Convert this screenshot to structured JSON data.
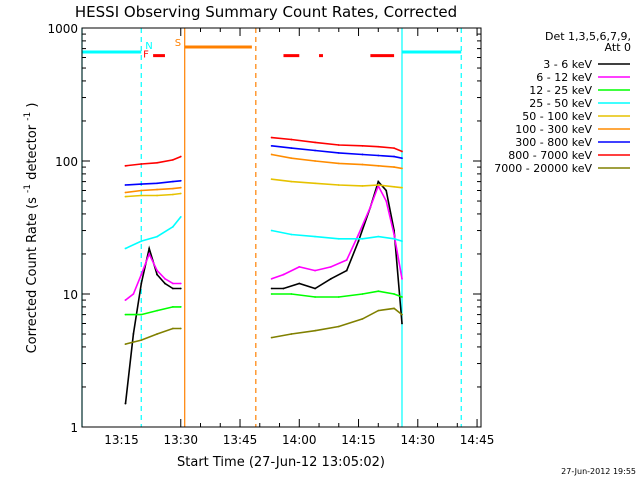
{
  "title": "HESSI Observing Summary Count Rates, Corrected",
  "footer_date": "27-Jun-2012 19:55",
  "chart_data": {
    "type": "line",
    "title": "HESSI Observing Summary Count Rates, Corrected",
    "xlabel": "Start Time (27-Jun-12 13:05:02)",
    "ylabel": "Corrected Count Rate (s⁻¹ detector⁻¹)",
    "ylabel_main": "Corrected Count Rate (s",
    "ylabel_mid": " detector",
    "ylabel_end": ")",
    "ylabel_sup": "-1",
    "yscale": "log",
    "ylim": [
      1,
      1000
    ],
    "xlim": [
      "13:05",
      "14:46"
    ],
    "x_tick_labels": [
      "13:15",
      "13:30",
      "13:45",
      "14:00",
      "14:15",
      "14:30",
      "14:45"
    ],
    "y_tick_labels": [
      "1",
      "10",
      "100",
      "1000"
    ],
    "legend_header": [
      "Det 1,3,5,6,7,9,",
      "Att 0"
    ],
    "flag_labels": [
      "F",
      "N",
      "S"
    ],
    "series": [
      {
        "name": "3 - 6 keV",
        "color": "#000000",
        "segments": [
          {
            "x": [
              "13:16",
              "13:18",
              "13:20",
              "13:22",
              "13:24",
              "13:26",
              "13:28",
              "13:30"
            ],
            "y": [
              1.5,
              5,
              12,
              22,
              14,
              12,
              11,
              11
            ]
          },
          {
            "x": [
              "13:53",
              "13:56",
              "14:00",
              "14:04",
              "14:08",
              "14:12",
              "14:15",
              "14:18",
              "14:20",
              "14:22",
              "14:24",
              "14:26"
            ],
            "y": [
              11,
              11,
              12,
              11,
              13,
              15,
              25,
              45,
              70,
              60,
              30,
              6
            ]
          }
        ]
      },
      {
        "name": "6 - 12 keV",
        "color": "#ff00ff",
        "segments": [
          {
            "x": [
              "13:16",
              "13:18",
              "13:20",
              "13:22",
              "13:24",
              "13:26",
              "13:28",
              "13:30"
            ],
            "y": [
              9,
              10,
              14,
              20,
              15,
              13,
              12,
              12
            ]
          },
          {
            "x": [
              "13:53",
              "13:56",
              "14:00",
              "14:04",
              "14:08",
              "14:12",
              "14:15",
              "14:18",
              "14:20",
              "14:22",
              "14:24",
              "14:26"
            ],
            "y": [
              13,
              14,
              16,
              15,
              16,
              18,
              28,
              45,
              65,
              50,
              28,
              13
            ]
          }
        ]
      },
      {
        "name": "12 - 25 keV",
        "color": "#00ff00",
        "segments": [
          {
            "x": [
              "13:16",
              "13:20",
              "13:24",
              "13:28",
              "13:30"
            ],
            "y": [
              7,
              7,
              7.5,
              8,
              8
            ]
          },
          {
            "x": [
              "13:53",
              "13:58",
              "14:04",
              "14:10",
              "14:16",
              "14:20",
              "14:24",
              "14:26"
            ],
            "y": [
              10,
              10,
              9.5,
              9.5,
              10,
              10.5,
              10,
              9.5
            ]
          }
        ]
      },
      {
        "name": "25 - 50 keV",
        "color": "#00ffff",
        "segments": [
          {
            "x": [
              "13:16",
              "13:20",
              "13:24",
              "13:28",
              "13:30"
            ],
            "y": [
              22,
              25,
              27,
              32,
              38
            ]
          },
          {
            "x": [
              "13:53",
              "13:58",
              "14:04",
              "14:10",
              "14:16",
              "14:20",
              "14:24",
              "14:26"
            ],
            "y": [
              30,
              28,
              27,
              26,
              26,
              27,
              26,
              25
            ]
          }
        ]
      },
      {
        "name": "50 - 100 keV",
        "color": "#e6c200",
        "segments": [
          {
            "x": [
              "13:16",
              "13:20",
              "13:24",
              "13:28",
              "13:30"
            ],
            "y": [
              54,
              55,
              55,
              56,
              57
            ]
          },
          {
            "x": [
              "13:53",
              "13:58",
              "14:04",
              "14:10",
              "14:16",
              "14:20",
              "14:24",
              "14:26"
            ],
            "y": [
              73,
              70,
              68,
              66,
              65,
              66,
              64,
              63
            ]
          }
        ]
      },
      {
        "name": "100 - 300 keV",
        "color": "#ff8c00",
        "segments": [
          {
            "x": [
              "13:16",
              "13:20",
              "13:24",
              "13:28",
              "13:30"
            ],
            "y": [
              58,
              60,
              61,
              62,
              63
            ]
          },
          {
            "x": [
              "13:53",
              "13:58",
              "14:04",
              "14:10",
              "14:16",
              "14:20",
              "14:24",
              "14:26"
            ],
            "y": [
              112,
              105,
              100,
              96,
              94,
              92,
              90,
              88
            ]
          }
        ]
      },
      {
        "name": "300 - 800 keV",
        "color": "#0000ff",
        "segments": [
          {
            "x": [
              "13:16",
              "13:20",
              "13:24",
              "13:28",
              "13:30"
            ],
            "y": [
              66,
              67,
              68,
              70,
              71
            ]
          },
          {
            "x": [
              "13:53",
              "13:58",
              "14:04",
              "14:10",
              "14:16",
              "14:20",
              "14:24",
              "14:26"
            ],
            "y": [
              130,
              125,
              120,
              115,
              112,
              110,
              108,
              105
            ]
          }
        ]
      },
      {
        "name": "800 - 7000 keV",
        "color": "#ff0000",
        "segments": [
          {
            "x": [
              "13:16",
              "13:20",
              "13:24",
              "13:28",
              "13:30"
            ],
            "y": [
              92,
              95,
              97,
              102,
              108
            ]
          },
          {
            "x": [
              "13:53",
              "13:58",
              "14:04",
              "14:10",
              "14:16",
              "14:20",
              "14:24",
              "14:26"
            ],
            "y": [
              150,
              145,
              138,
              132,
              130,
              128,
              125,
              118
            ]
          }
        ]
      },
      {
        "name": "7000 - 20000 keV",
        "color": "#808000",
        "segments": [
          {
            "x": [
              "13:16",
              "13:20",
              "13:24",
              "13:28",
              "13:30"
            ],
            "y": [
              4.2,
              4.5,
              5,
              5.5,
              5.5
            ]
          },
          {
            "x": [
              "13:53",
              "13:58",
              "14:04",
              "14:10",
              "14:16",
              "14:20",
              "14:24",
              "14:26"
            ],
            "y": [
              4.7,
              5,
              5.3,
              5.7,
              6.5,
              7.5,
              7.8,
              7
            ]
          }
        ]
      }
    ],
    "flag_bars": [
      {
        "label": "F",
        "color": "#ff0000",
        "y": 620,
        "spans": [
          [
            "13:23",
            "13:26"
          ],
          [
            "13:56",
            "14:00"
          ],
          [
            "14:05",
            "14:06"
          ],
          [
            "14:18",
            "14:24"
          ]
        ]
      },
      {
        "label": "N",
        "color": "#00ffff",
        "y": 660,
        "spans": [
          [
            "13:05",
            "13:20"
          ],
          [
            "14:26",
            "14:41"
          ]
        ]
      },
      {
        "label": "S",
        "color": "#ff8000",
        "y": 720,
        "spans": [
          [
            "13:31",
            "13:48"
          ]
        ]
      }
    ],
    "vertical_lines": [
      {
        "x": "13:05",
        "color": "#00ffff",
        "style": "solid"
      },
      {
        "x": "13:20",
        "color": "#00ffff",
        "style": "dashed"
      },
      {
        "x": "13:31",
        "color": "#ff8000",
        "style": "solid"
      },
      {
        "x": "13:49",
        "color": "#ff8000",
        "style": "dashed"
      },
      {
        "x": "14:26",
        "color": "#00ffff",
        "style": "solid"
      },
      {
        "x": "14:41",
        "color": "#00ffff",
        "style": "dashed"
      }
    ]
  }
}
